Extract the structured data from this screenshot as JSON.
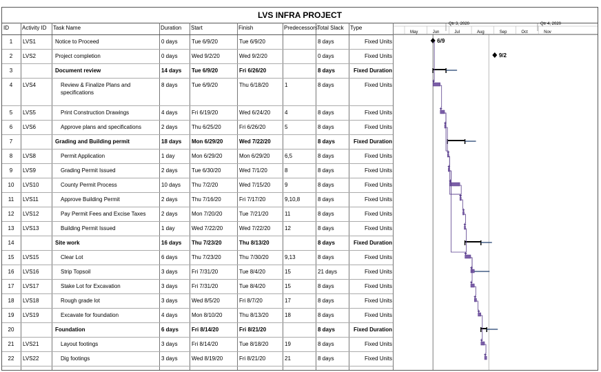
{
  "title": "LVS INFRA PROJECT",
  "columns": [
    "ID",
    "Activity ID",
    "Task Name",
    "Duration",
    "Start",
    "Finish",
    "Predecessors",
    "Total Slack",
    "Type"
  ],
  "timeline": {
    "quarters": [
      "Qtr 3, 2020",
      "Qtr 4, 2020"
    ],
    "months": [
      "May",
      "Jun",
      "Jul",
      "Aug",
      "Sep",
      "Oct",
      "Nov"
    ],
    "milestone_labels": [
      "6/9",
      "9/2"
    ]
  },
  "rows": [
    {
      "id": "1",
      "act": "LVS1",
      "name": "Notice to Proceed",
      "dur": "0 days",
      "start": "Tue 6/9/20",
      "finish": "Tue 6/9/20",
      "pred": "",
      "slack": "8 days",
      "type": "Fixed Units",
      "summary": false,
      "indent": false,
      "ms": true,
      "s": [
        6,
        9
      ],
      "f": [
        6,
        9
      ]
    },
    {
      "id": "2",
      "act": "LVS2",
      "name": "Project completion",
      "dur": "0 days",
      "start": "Wed 9/2/20",
      "finish": "Wed 9/2/20",
      "pred": "",
      "slack": "0 days",
      "type": "Fixed Units",
      "summary": false,
      "indent": false,
      "ms": true,
      "s": [
        9,
        2
      ],
      "f": [
        9,
        2
      ]
    },
    {
      "id": "3",
      "act": "",
      "name": "Document review",
      "dur": "14 days",
      "start": "Tue 6/9/20",
      "finish": "Fri 6/26/20",
      "pred": "",
      "slack": "8 days",
      "type": "Fixed Duration",
      "summary": true,
      "indent": false,
      "ms": false,
      "s": [
        6,
        9
      ],
      "f": [
        6,
        26
      ]
    },
    {
      "id": "4",
      "act": "LVS4",
      "name": "Review & Finalize Plans and",
      "name2": "specifications",
      "dur": "8 days",
      "start": "Tue 6/9/20",
      "finish": "Thu 6/18/20",
      "pred": "1",
      "slack": "8 days",
      "type": "Fixed Units",
      "summary": false,
      "indent": true,
      "ms": false,
      "s": [
        6,
        9
      ],
      "f": [
        6,
        18
      ]
    },
    {
      "id": "5",
      "act": "LVS5",
      "name": "Print Construction Drawings",
      "dur": "4 days",
      "start": "Fri 6/19/20",
      "finish": "Wed 6/24/20",
      "pred": "4",
      "slack": "8 days",
      "type": "Fixed Units",
      "summary": false,
      "indent": true,
      "ms": false,
      "s": [
        6,
        19
      ],
      "f": [
        6,
        24
      ]
    },
    {
      "id": "6",
      "act": "LVS6",
      "name": "Approve plans and specifications",
      "dur": "2 days",
      "start": "Thu 6/25/20",
      "finish": "Fri 6/26/20",
      "pred": "5",
      "slack": "8 days",
      "type": "Fixed Units",
      "summary": false,
      "indent": true,
      "ms": false,
      "s": [
        6,
        25
      ],
      "f": [
        6,
        26
      ]
    },
    {
      "id": "7",
      "act": "",
      "name": "Grading and Building permit",
      "dur": "18 days",
      "start": "Mon 6/29/20",
      "finish": "Wed 7/22/20",
      "pred": "",
      "slack": "8 days",
      "type": "Fixed Duration",
      "summary": true,
      "indent": false,
      "ms": false,
      "s": [
        6,
        29
      ],
      "f": [
        7,
        22
      ]
    },
    {
      "id": "8",
      "act": "LVS8",
      "name": "Permit Application",
      "dur": "1 day",
      "start": "Mon 6/29/20",
      "finish": "Mon 6/29/20",
      "pred": "6,5",
      "slack": "8 days",
      "type": "Fixed Units",
      "summary": false,
      "indent": true,
      "ms": false,
      "s": [
        6,
        29
      ],
      "f": [
        6,
        29
      ]
    },
    {
      "id": "9",
      "act": "LVS9",
      "name": "Grading Permit Issued",
      "dur": "2 days",
      "start": "Tue 6/30/20",
      "finish": "Wed 7/1/20",
      "pred": "8",
      "slack": "8 days",
      "type": "Fixed Units",
      "summary": false,
      "indent": true,
      "ms": false,
      "s": [
        6,
        30
      ],
      "f": [
        7,
        1
      ]
    },
    {
      "id": "10",
      "act": "LVS10",
      "name": "County Permit Process",
      "dur": "10 days",
      "start": "Thu 7/2/20",
      "finish": "Wed 7/15/20",
      "pred": "9",
      "slack": "8 days",
      "type": "Fixed Units",
      "summary": false,
      "indent": true,
      "ms": false,
      "s": [
        7,
        2
      ],
      "f": [
        7,
        15
      ]
    },
    {
      "id": "11",
      "act": "LVS11",
      "name": "Approve Building Permit",
      "dur": "2 days",
      "start": "Thu 7/16/20",
      "finish": "Fri 7/17/20",
      "pred": "9,10,8",
      "slack": "8 days",
      "type": "Fixed Units",
      "summary": false,
      "indent": true,
      "ms": false,
      "s": [
        7,
        16
      ],
      "f": [
        7,
        17
      ]
    },
    {
      "id": "12",
      "act": "LVS12",
      "name": "Pay Permit Fees and Excise Taxes",
      "dur": "2 days",
      "start": "Mon 7/20/20",
      "finish": "Tue 7/21/20",
      "pred": "11",
      "slack": "8 days",
      "type": "Fixed Units",
      "summary": false,
      "indent": true,
      "ms": false,
      "s": [
        7,
        20
      ],
      "f": [
        7,
        21
      ]
    },
    {
      "id": "13",
      "act": "LVS13",
      "name": "Building Permit Issued",
      "dur": "1 day",
      "start": "Wed 7/22/20",
      "finish": "Wed 7/22/20",
      "pred": "12",
      "slack": "8 days",
      "type": "Fixed Units",
      "summary": false,
      "indent": true,
      "ms": false,
      "s": [
        7,
        22
      ],
      "f": [
        7,
        22
      ]
    },
    {
      "id": "14",
      "act": "",
      "name": "Site work",
      "dur": "16 days",
      "start": "Thu 7/23/20",
      "finish": "Thu 8/13/20",
      "pred": "",
      "slack": "8 days",
      "type": "Fixed Duration",
      "summary": true,
      "indent": false,
      "ms": false,
      "s": [
        7,
        23
      ],
      "f": [
        8,
        13
      ]
    },
    {
      "id": "15",
      "act": "LVS15",
      "name": "Clear Lot",
      "dur": "6 days",
      "start": "Thu 7/23/20",
      "finish": "Thu 7/30/20",
      "pred": "9,13",
      "slack": "8 days",
      "type": "Fixed Units",
      "summary": false,
      "indent": true,
      "ms": false,
      "s": [
        7,
        23
      ],
      "f": [
        7,
        30
      ]
    },
    {
      "id": "16",
      "act": "LVS16",
      "name": "Strip Topsoil",
      "dur": "3 days",
      "start": "Fri 7/31/20",
      "finish": "Tue 8/4/20",
      "pred": "15",
      "slack": "21 days",
      "type": "Fixed Units",
      "summary": false,
      "indent": true,
      "ms": false,
      "s": [
        7,
        31
      ],
      "f": [
        8,
        4
      ]
    },
    {
      "id": "17",
      "act": "LVS17",
      "name": "Stake Lot for Excavation",
      "dur": "3 days",
      "start": "Fri 7/31/20",
      "finish": "Tue 8/4/20",
      "pred": "15",
      "slack": "8 days",
      "type": "Fixed Units",
      "summary": false,
      "indent": true,
      "ms": false,
      "s": [
        7,
        31
      ],
      "f": [
        8,
        4
      ]
    },
    {
      "id": "18",
      "act": "LVS18",
      "name": "Rough grade lot",
      "dur": "3 days",
      "start": "Wed 8/5/20",
      "finish": "Fri 8/7/20",
      "pred": "17",
      "slack": "8 days",
      "type": "Fixed Units",
      "summary": false,
      "indent": true,
      "ms": false,
      "s": [
        8,
        5
      ],
      "f": [
        8,
        7
      ]
    },
    {
      "id": "19",
      "act": "LVS19",
      "name": "Excavate for foundation",
      "dur": "4 days",
      "start": "Mon 8/10/20",
      "finish": "Thu 8/13/20",
      "pred": "18",
      "slack": "8 days",
      "type": "Fixed Units",
      "summary": false,
      "indent": true,
      "ms": false,
      "s": [
        8,
        10
      ],
      "f": [
        8,
        13
      ]
    },
    {
      "id": "20",
      "act": "",
      "name": "Foundation",
      "dur": "6 days",
      "start": "Fri 8/14/20",
      "finish": "Fri 8/21/20",
      "pred": "",
      "slack": "8 days",
      "type": "Fixed Duration",
      "summary": true,
      "indent": false,
      "ms": false,
      "s": [
        8,
        14
      ],
      "f": [
        8,
        21
      ]
    },
    {
      "id": "21",
      "act": "LVS21",
      "name": "Layout footings",
      "dur": "3 days",
      "start": "Fri 8/14/20",
      "finish": "Tue 8/18/20",
      "pred": "19",
      "slack": "8 days",
      "type": "Fixed Units",
      "summary": false,
      "indent": true,
      "ms": false,
      "s": [
        8,
        14
      ],
      "f": [
        8,
        18
      ]
    },
    {
      "id": "22",
      "act": "LVS22",
      "name": "Dig footings",
      "dur": "3 days",
      "start": "Wed 8/19/20",
      "finish": "Fri 8/21/20",
      "pred": "21",
      "slack": "8 days",
      "type": "Fixed Units",
      "summary": false,
      "indent": true,
      "ms": false,
      "s": [
        8,
        19
      ],
      "f": [
        8,
        21
      ]
    }
  ],
  "colors": {
    "bar": "#7b5ea7",
    "bar_dark": "#5a3f8c",
    "summary": "#000000",
    "slack": "#1f3d6e",
    "grid": "#aaaaaa"
  }
}
